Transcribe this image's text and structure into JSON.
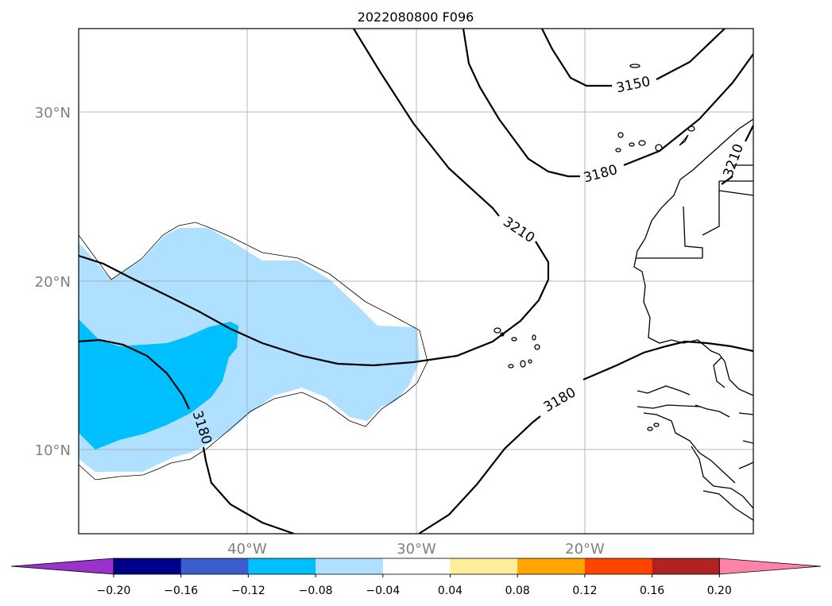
{
  "title": "2022080800 F096",
  "map": {
    "lat_ticks": [
      {
        "value": 30,
        "label": "30°N"
      },
      {
        "value": 20,
        "label": "20°N"
      },
      {
        "value": 10,
        "label": "10°N"
      }
    ],
    "lon_ticks": [
      {
        "value": -40,
        "label": "40°W"
      },
      {
        "value": -30,
        "label": "30°W"
      },
      {
        "value": -20,
        "label": "20°W"
      }
    ],
    "lon_range": [
      -50,
      -10
    ],
    "lat_range": [
      5,
      35
    ],
    "gridlines": true
  },
  "contours": {
    "color": "#000000",
    "labels": [
      "3150",
      "3180",
      "3210",
      "3180",
      "3180",
      "3210"
    ]
  },
  "colorbar": {
    "orientation": "horizontal",
    "extend": "both",
    "colors": [
      "#9933cc",
      "#00008b",
      "#3a5fcd",
      "#00bfff",
      "#b0e0ff",
      "#ffffff",
      "#ffee99",
      "#ffa500",
      "#ff4500",
      "#b22222",
      "#ff82a9"
    ],
    "tick_labels": [
      "−0.20",
      "−0.16",
      "−0.12",
      "−0.08",
      "−0.04",
      "0.04",
      "0.08",
      "0.12",
      "0.16",
      "0.20"
    ]
  }
}
